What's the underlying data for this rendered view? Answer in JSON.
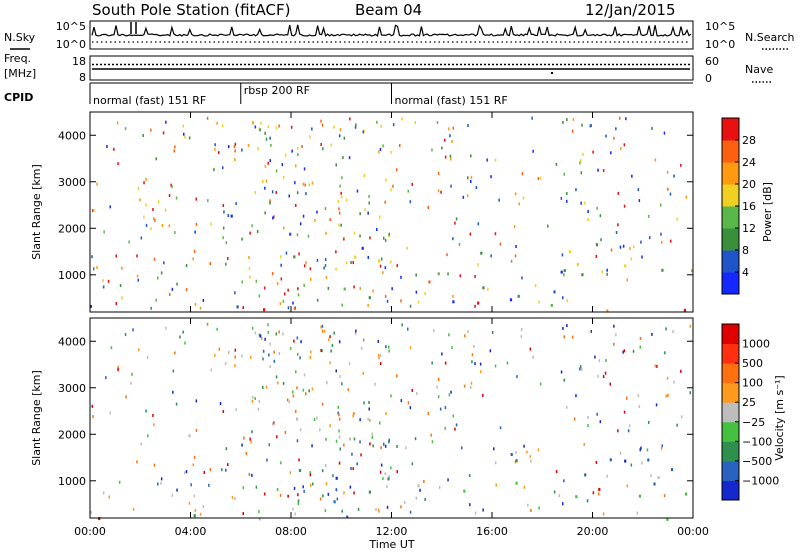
{
  "header": {
    "station": "South Pole Station (fitACF)",
    "beam": "Beam 04",
    "date": "12/Jan/2015"
  },
  "side_labels": {
    "nsky": "N.Sky",
    "freq_line1": "Freq.",
    "freq_line2": "[MHz]",
    "cpid": "CPID",
    "nsearch": "N.Search",
    "nave": "Nave"
  },
  "noise_panel": {
    "left_ticks": [
      "10^5",
      "10^0"
    ],
    "right_ticks": [
      "10^5",
      "10^0"
    ]
  },
  "freq_panel": {
    "left_ticks": [
      "18",
      "8"
    ],
    "right_ticks": [
      "60",
      "0"
    ]
  },
  "cpid_panel": {
    "segments": [
      {
        "label": "normal (fast) 151 RF",
        "start_h": 0,
        "end_h": 6
      },
      {
        "label": "rbsp 200 RF",
        "start_h": 6,
        "end_h": 12
      },
      {
        "label": "normal (fast) 151 RF",
        "start_h": 12,
        "end_h": 24
      }
    ]
  },
  "chart_data": [
    {
      "type": "heatmap",
      "name": "power",
      "ylabel": "Slant Range [km]",
      "xlabel": "Time UT",
      "xlim": [
        0,
        24
      ],
      "ylim": [
        200,
        4500
      ],
      "x_ticks": [
        "00:00",
        "04:00",
        "08:00",
        "12:00",
        "16:00",
        "20:00",
        "00:00"
      ],
      "y_ticks": [
        "1000",
        "2000",
        "3000",
        "4000"
      ],
      "colorbar": {
        "label": "Power [dB]",
        "ticks": [
          "4",
          "8",
          "12",
          "16",
          "20",
          "24",
          "28"
        ],
        "colors": [
          "#1428ff",
          "#1f55c8",
          "#3a8f3a",
          "#5ab84a",
          "#f0d020",
          "#ff9a10",
          "#ff6010",
          "#e81010"
        ]
      }
    },
    {
      "type": "heatmap",
      "name": "velocity",
      "ylabel": "Slant Range [km]",
      "xlabel": "Time UT",
      "xlim": [
        0,
        24
      ],
      "ylim": [
        200,
        4500
      ],
      "x_ticks": [
        "00:00",
        "04:00",
        "08:00",
        "12:00",
        "16:00",
        "20:00",
        "00:00"
      ],
      "y_ticks": [
        "1000",
        "2000",
        "3000",
        "4000"
      ],
      "colorbar": {
        "label": "Velocity [m s⁻¹]",
        "ticks": [
          "1000",
          "500",
          "100",
          "25",
          "−25",
          "−100",
          "−500",
          "−1000"
        ],
        "colors": [
          "#1428cc",
          "#2a62c0",
          "#2f8f4f",
          "#45c040",
          "#bdbdbd",
          "#ff9a20",
          "#ff7010",
          "#ff3010",
          "#e00000"
        ]
      }
    }
  ],
  "x_axis_label": "Time UT"
}
